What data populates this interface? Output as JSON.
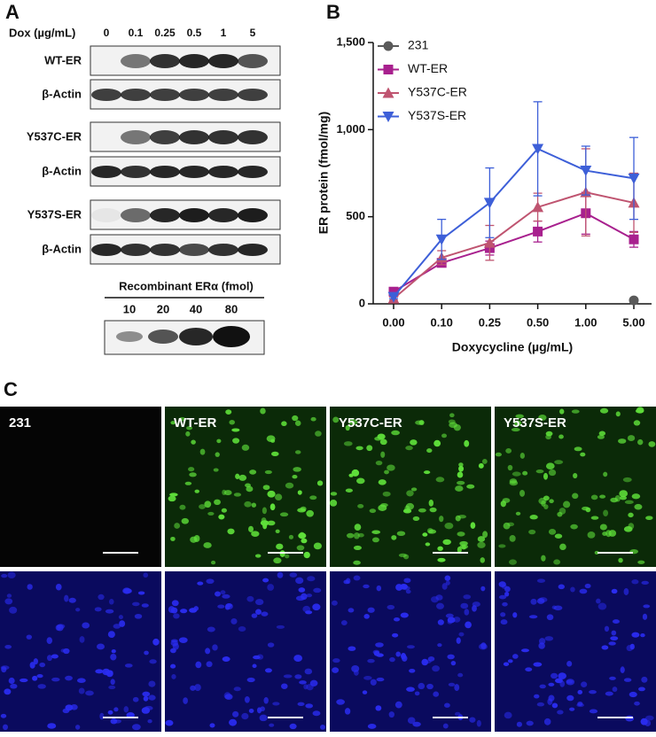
{
  "panel_labels": [
    "A",
    "B",
    "C"
  ],
  "blot": {
    "dox_label": "Dox (µg/mL)",
    "doses": [
      "0",
      "0.1",
      "0.25",
      "0.5",
      "1",
      "5"
    ],
    "rows": [
      "WT-ER",
      "β-Actin",
      "Y537C-ER",
      "β-Actin",
      "Y537S-ER",
      "β-Actin"
    ],
    "recombinant_title": "Recombinant ERα (fmol)",
    "recombinant_amounts": [
      "10",
      "20",
      "40",
      "80"
    ]
  },
  "chart_data": {
    "type": "line",
    "x_label": "Doxycycline (µg/mL)",
    "y_label": "ER protein (fmol/mg)",
    "categories": [
      "0.00",
      "0.10",
      "0.25",
      "0.50",
      "1.00",
      "5.00"
    ],
    "ylim": [
      0,
      1500
    ],
    "yticks": [
      0,
      500,
      {
        "value": 1000,
        "label": "1,000"
      },
      {
        "value": 1500,
        "label": "1,500"
      }
    ],
    "legend": "top-left",
    "series": [
      {
        "name": "231",
        "color": "#5a5a5a",
        "marker": "circle",
        "values": [
          null,
          null,
          null,
          null,
          null,
          20
        ],
        "errors": [
          null,
          null,
          null,
          null,
          null,
          0
        ]
      },
      {
        "name": "WT-ER",
        "color": "#a8208e",
        "marker": "square",
        "values": [
          70,
          235,
          320,
          415,
          520,
          370
        ],
        "errors": [
          15,
          20,
          40,
          60,
          120,
          45
        ]
      },
      {
        "name": "Y537C-ER",
        "color": "#bf5470",
        "marker": "triangle-up",
        "values": [
          30,
          265,
          350,
          555,
          640,
          580
        ],
        "errors": [
          10,
          40,
          100,
          80,
          250,
          170
        ]
      },
      {
        "name": "Y537S-ER",
        "color": "#3d5fd8",
        "marker": "triangle-down",
        "values": [
          40,
          370,
          580,
          890,
          765,
          720
        ],
        "errors": [
          10,
          115,
          200,
          270,
          140,
          235
        ]
      }
    ]
  },
  "micrographs": {
    "labels": [
      "231",
      "WT-ER",
      "Y537C-ER",
      "Y537S-ER"
    ]
  }
}
